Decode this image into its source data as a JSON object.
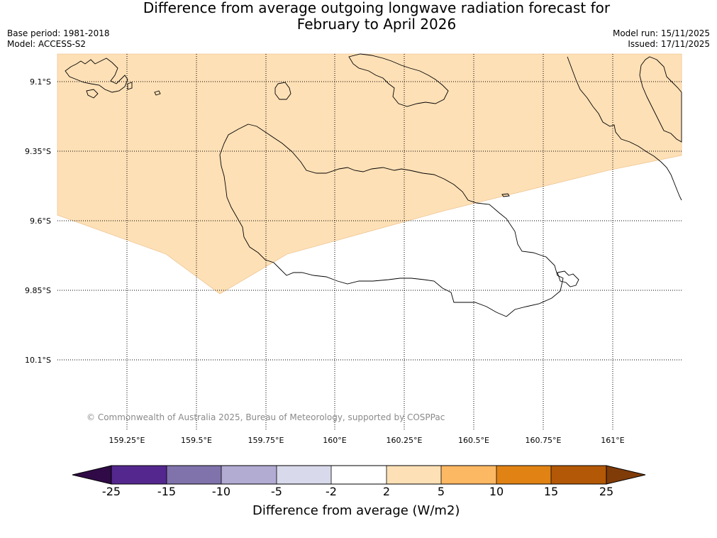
{
  "title": {
    "line1": "Difference from average outgoing longwave radiation forecast for",
    "line2": "February to April 2026"
  },
  "meta": {
    "base_period": "Base period: 1981-2018",
    "model": "Model: ACCESS-S2",
    "model_run": "Model run: 15/11/2025",
    "issued": "Issued: 17/11/2025"
  },
  "map": {
    "lat_labels": [
      "9.1°S",
      "9.35°S",
      "9.6°S",
      "9.85°S",
      "10.1°S"
    ],
    "lon_labels": [
      "159.25°E",
      "159.5°E",
      "159.75°E",
      "160°E",
      "160.25°E",
      "160.5°E",
      "160.75°E",
      "161°E"
    ],
    "region_fill_category": "2 to 5",
    "copyright": "© Commonwealth of Australia 2025, Bureau of Meteorology, supported by COSPPac"
  },
  "colorbar": {
    "title": "Difference from average (W/m2)",
    "tick_labels": [
      "-25",
      "-15",
      "-10",
      "-5",
      "-2",
      "2",
      "5",
      "10",
      "15",
      "25"
    ],
    "colors": [
      "#300a46",
      "#54278f",
      "#8073ac",
      "#b2abd2",
      "#d8daeb",
      "#ffffff",
      "#fee0b6",
      "#fdb863",
      "#e08214",
      "#b35806",
      "#7f3b08"
    ]
  }
}
